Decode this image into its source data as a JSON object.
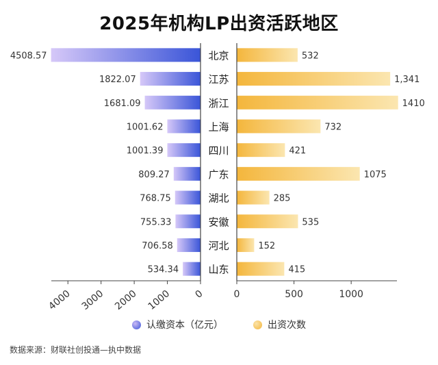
{
  "title": "2025年机构LP出资活跃地区",
  "legend": {
    "left_label": "认缴资本（亿元）",
    "right_label": "出资次数"
  },
  "source": "数据来源：财联社创投通—执中数据",
  "colors": {
    "left_dark": "#3a55d8",
    "left_light": "#c9b9f5",
    "right_dark": "#f4b63c",
    "right_light": "#fbe3a8",
    "axis": "#555555",
    "text": "#333333"
  },
  "chart_data": {
    "type": "bar",
    "orientation": "horizontal-butterfly",
    "title": "2025年机构LP出资活跃地区",
    "categories": [
      "北京",
      "江苏",
      "浙江",
      "上海",
      "四川",
      "广东",
      "湖北",
      "安徽",
      "河北",
      "山东"
    ],
    "series": [
      {
        "name": "认缴资本（亿元）",
        "values": [
          4508.57,
          1822.07,
          1681.09,
          1001.62,
          1001.39,
          809.27,
          768.75,
          755.33,
          706.58,
          534.34
        ],
        "labels": [
          "4508.57",
          "1822.07",
          "1681.09",
          "1001.62",
          "1001.39",
          "809.27",
          "768.75",
          "755.33",
          "706.58",
          "534.34"
        ],
        "xlim": [
          0,
          4500
        ],
        "ticks": [
          4000,
          3000,
          2000,
          1000,
          0
        ],
        "direction": "leftward"
      },
      {
        "name": "出资次数",
        "values": [
          532,
          1341,
          1410,
          732,
          421,
          1075,
          285,
          535,
          152,
          415
        ],
        "labels": [
          "532",
          "1,341",
          "1410",
          "732",
          "421",
          "1075",
          "285",
          "535",
          "152",
          "415"
        ],
        "xlim": [
          0,
          1400
        ],
        "ticks": [
          0,
          500,
          1000
        ],
        "direction": "rightward"
      }
    ],
    "legend_position": "bottom-center",
    "grid": false
  }
}
